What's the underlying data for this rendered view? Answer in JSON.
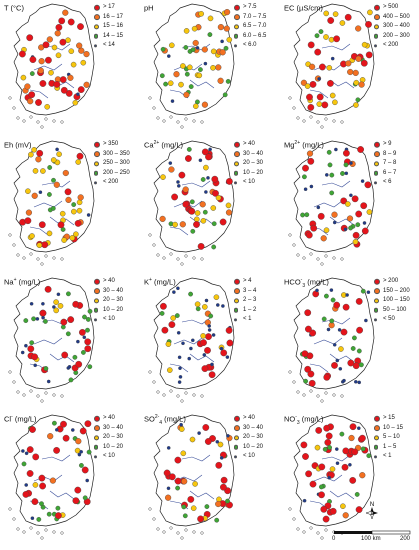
{
  "legend_colors": [
    "#e4141b",
    "#f37021",
    "#f7c60d",
    "#3fa535",
    "#1f3a8a"
  ],
  "panels": [
    {
      "title_main": "T (°C)",
      "title_sup": "",
      "title_sub": "",
      "title_tail": "",
      "classes": [
        "> 17",
        "16 – 17",
        "15 – 16",
        "14 – 15",
        "< 14"
      ],
      "dominant": [
        0.45,
        0.25,
        0.2,
        0.07,
        0.03
      ]
    },
    {
      "title_main": "pH",
      "title_sup": "",
      "title_sub": "",
      "title_tail": "",
      "classes": [
        "> 7.5",
        "7.0 – 7.5",
        "6.5 – 7.0",
        "6.0 – 6.5",
        "< 6.0"
      ],
      "dominant": [
        0.05,
        0.2,
        0.35,
        0.3,
        0.1
      ]
    },
    {
      "title_main": "EC (µS/cm)",
      "title_sup": "",
      "title_sub": "",
      "title_tail": "",
      "classes": [
        "> 500",
        "400 – 500",
        "300 – 400",
        "200 – 300",
        "< 200"
      ],
      "dominant": [
        0.3,
        0.2,
        0.3,
        0.15,
        0.05
      ]
    },
    {
      "title_main": "Eh (mV)",
      "title_sup": "",
      "title_sub": "",
      "title_tail": "",
      "classes": [
        "> 350",
        "300 – 350",
        "250 – 300",
        "200 – 250",
        "< 200"
      ],
      "dominant": [
        0.15,
        0.35,
        0.35,
        0.1,
        0.05
      ]
    },
    {
      "title_main": "Ca",
      "title_sup": "2+",
      "title_sub": "",
      "title_tail": " (mg/L)",
      "classes": [
        "> 40",
        "30 – 40",
        "20 – 30",
        "10 – 20",
        "< 10"
      ],
      "dominant": [
        0.4,
        0.15,
        0.15,
        0.2,
        0.1
      ]
    },
    {
      "title_main": "Mg",
      "title_sup": "2+",
      "title_sub": "",
      "title_tail": " (mg/L)",
      "classes": [
        "> 9",
        "8 – 9",
        "7 – 8",
        "6 – 7",
        "< 6"
      ],
      "dominant": [
        0.45,
        0.1,
        0.1,
        0.15,
        0.2
      ]
    },
    {
      "title_main": "Na",
      "title_sup": "+",
      "title_sub": "",
      "title_tail": " (mg/L)",
      "classes": [
        "> 40",
        "30 – 40",
        "20 – 30",
        "10 – 20",
        "< 10"
      ],
      "dominant": [
        0.35,
        0.05,
        0.1,
        0.25,
        0.25
      ]
    },
    {
      "title_main": "K",
      "title_sup": "+",
      "title_sub": "",
      "title_tail": " (mg/L)",
      "classes": [
        "> 4",
        "3 – 4",
        "2 – 3",
        "1 – 2",
        "< 1"
      ],
      "dominant": [
        0.35,
        0.05,
        0.15,
        0.15,
        0.3
      ]
    },
    {
      "title_main": "HCO",
      "title_sup": "-",
      "title_sub": "3",
      "title_tail": " (mg/L)",
      "classes": [
        "> 200",
        "150 – 200",
        "100 – 150",
        "50 – 100",
        "< 50"
      ],
      "dominant": [
        0.5,
        0.05,
        0.1,
        0.15,
        0.2
      ]
    },
    {
      "title_main": "Cl",
      "title_sup": "-",
      "title_sub": "",
      "title_tail": " (mg/L)",
      "classes": [
        "> 40",
        "30 – 40",
        "20 – 30",
        "10 – 20",
        "< 10"
      ],
      "dominant": [
        0.4,
        0.1,
        0.1,
        0.25,
        0.15
      ]
    },
    {
      "title_main": "SO",
      "title_sup": "2-",
      "title_sub": "4",
      "title_tail": " (mg/L)",
      "classes": [
        "> 40",
        "30 – 40",
        "20 – 30",
        "10 – 20",
        "< 10"
      ],
      "dominant": [
        0.3,
        0.1,
        0.15,
        0.2,
        0.25
      ]
    },
    {
      "title_main": "NO",
      "title_sup": "-",
      "title_sub": "3",
      "title_tail": " (mg/L)",
      "classes": [
        "> 15",
        "10 – 15",
        "5 – 10",
        "1 – 5",
        "< 1"
      ],
      "dominant": [
        0.5,
        0.1,
        0.1,
        0.15,
        0.15
      ]
    }
  ],
  "north_label": "N",
  "scale_labels": [
    "0",
    "100 km",
    "200"
  ]
}
